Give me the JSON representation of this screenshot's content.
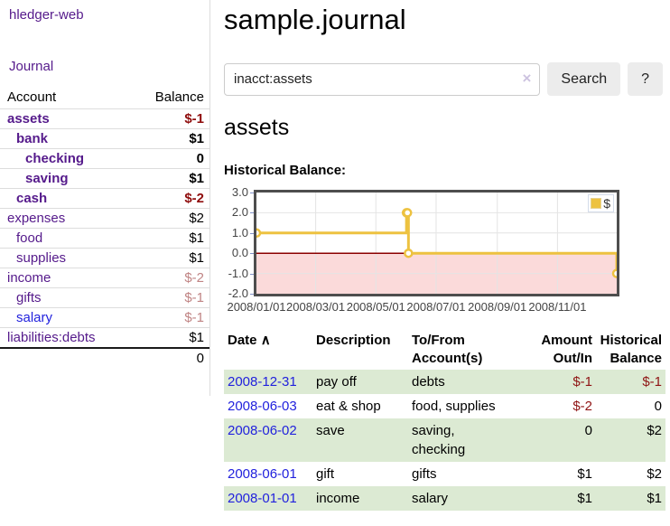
{
  "app_title": "hledger-web",
  "sidebar": {
    "journal_link": "Journal",
    "table": {
      "account_header": "Account",
      "balance_header": "Balance",
      "rows": [
        {
          "account": "assets",
          "balance": "$-1",
          "depth": 1,
          "bold": true,
          "balance_tone": "negative-strong"
        },
        {
          "account": "bank",
          "balance": "$1",
          "depth": 2,
          "bold": true,
          "balance_tone": "normal"
        },
        {
          "account": "checking",
          "balance": "0",
          "depth": 3,
          "bold": true,
          "balance_tone": "normal"
        },
        {
          "account": "saving",
          "balance": "$1",
          "depth": 3,
          "bold": true,
          "balance_tone": "normal"
        },
        {
          "account": "cash",
          "balance": "$-2",
          "depth": 2,
          "bold": true,
          "balance_tone": "negative-strong"
        },
        {
          "account": "expenses",
          "balance": "$2",
          "depth": 1,
          "bold": false,
          "balance_tone": "normal"
        },
        {
          "account": "food",
          "balance": "$1",
          "depth": 2,
          "bold": false,
          "balance_tone": "normal"
        },
        {
          "account": "supplies",
          "balance": "$1",
          "depth": 2,
          "bold": false,
          "balance_tone": "normal"
        },
        {
          "account": "income",
          "balance": "$-2",
          "depth": 1,
          "bold": false,
          "balance_tone": "negative-faded"
        },
        {
          "account": "gifts",
          "balance": "$-1",
          "depth": 2,
          "bold": false,
          "balance_tone": "negative-faded"
        },
        {
          "account": "salary",
          "balance": "$-1",
          "depth": 2,
          "bold": false,
          "balance_tone": "negative-faded"
        },
        {
          "account": "liabilities:debts",
          "balance": "$1",
          "depth": 1,
          "bold": false,
          "balance_tone": "normal"
        }
      ],
      "total": "0"
    }
  },
  "header": {
    "title": "sample.journal"
  },
  "search": {
    "value": "inacct:assets",
    "clear_icon": "×",
    "search_button": "Search",
    "help_button": "?"
  },
  "account_page": {
    "heading": "assets",
    "chart_title": "Historical Balance:"
  },
  "chart_data": {
    "type": "line",
    "title": "Historical Balance",
    "step": true,
    "legend_label": "$",
    "legend_position": "top-right",
    "line_color": "#edc240",
    "negative_fill": "#fbdada",
    "zero_line_color": "#8b0000",
    "grid": true,
    "xmin": "2008-01-01",
    "xmax": "2008-12-31",
    "ylim": [
      -2,
      3
    ],
    "yticks": [
      3.0,
      2.0,
      1.0,
      0.0,
      -1.0,
      -2.0
    ],
    "xticks": [
      "2008-01-01",
      "2008-03-01",
      "2008-05-01",
      "2008-07-01",
      "2008-09-01",
      "2008-11-01"
    ],
    "xtick_labels": [
      "2008/01/01",
      "2008/03/01",
      "2008/05/01",
      "2008/07/01",
      "2008/09/01",
      "2008/11/01"
    ],
    "series": [
      {
        "name": "$",
        "points": [
          {
            "date": "2008-01-01",
            "value": 1
          },
          {
            "date": "2008-06-01",
            "value": 2
          },
          {
            "date": "2008-06-02",
            "value": 2
          },
          {
            "date": "2008-06-03",
            "value": 0
          },
          {
            "date": "2008-12-31",
            "value": -1
          }
        ]
      }
    ]
  },
  "register": {
    "headers": {
      "date": "Date",
      "sort_icon": "∧",
      "description": "Description",
      "account_line1": "To/From",
      "account_line2": "Account(s)",
      "amount_line1": "Amount",
      "amount_line2": "Out/In",
      "balance_line1": "Historical",
      "balance_line2": "Balance"
    },
    "rows": [
      {
        "date": "2008-12-31",
        "description": "pay off",
        "accounts": "debts",
        "amount": "$-1",
        "balance": "$-1"
      },
      {
        "date": "2008-06-03",
        "description": "eat & shop",
        "accounts": "food, supplies",
        "amount": "$-2",
        "balance": "0"
      },
      {
        "date": "2008-06-02",
        "description": "save",
        "accounts": "saving,\nchecking",
        "amount": "0",
        "balance": "$2"
      },
      {
        "date": "2008-06-01",
        "description": "gift",
        "accounts": "gifts",
        "amount": "$1",
        "balance": "$2"
      },
      {
        "date": "2008-01-01",
        "description": "income",
        "accounts": "salary",
        "amount": "$1",
        "balance": "$1"
      }
    ]
  }
}
